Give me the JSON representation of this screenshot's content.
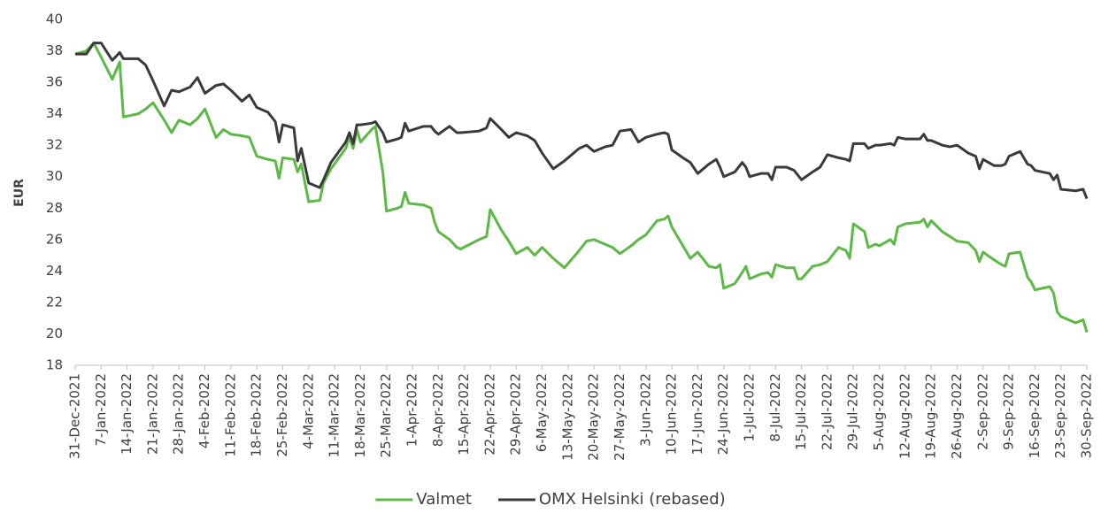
{
  "chart_data": {
    "type": "line",
    "y_label": "EUR",
    "ylim": [
      18,
      40
    ],
    "yticks": [
      18,
      20,
      22,
      24,
      26,
      28,
      30,
      32,
      34,
      36,
      38,
      40
    ],
    "xlim": [
      "31-Dec-2021",
      "30-Sep-2022"
    ],
    "xticks": [
      "31-Dec-2021",
      "7-Jan-2022",
      "14-Jan-2022",
      "21-Jan-2022",
      "28-Jan-2022",
      "4-Feb-2022",
      "11-Feb-2022",
      "18-Feb-2022",
      "25-Feb-2022",
      "4-Mar-2022",
      "11-Mar-2022",
      "18-Mar-2022",
      "25-Mar-2022",
      "1-Apr-2022",
      "8-Apr-2022",
      "15-Apr-2022",
      "22-Apr-2022",
      "29-Apr-2022",
      "6-May-2022",
      "13-May-2022",
      "20-May-2022",
      "27-May-2022",
      "3-Jun-2022",
      "10-Jun-2022",
      "17-Jun-2022",
      "24-Jun-2022",
      "1-Jul-2022",
      "8-Jul-2022",
      "15-Jul-2022",
      "22-Jul-2022",
      "29-Jul-2022",
      "5-Aug-2022",
      "12-Aug-2022",
      "19-Aug-2022",
      "26-Aug-2022",
      "2-Sep-2022",
      "9-Sep-2022",
      "16-Sep-2022",
      "23-Sep-2022",
      "30-Sep-2022"
    ],
    "legend": "bottom",
    "grid": false,
    "x": [
      "31-Dec-2021",
      "3-Jan-2022",
      "5-Jan-2022",
      "7-Jan-2022",
      "10-Jan-2022",
      "12-Jan-2022",
      "13-Jan-2022",
      "17-Jan-2022",
      "19-Jan-2022",
      "21-Jan-2022",
      "24-Jan-2022",
      "26-Jan-2022",
      "28-Jan-2022",
      "31-Jan-2022",
      "2-Feb-2022",
      "4-Feb-2022",
      "7-Feb-2022",
      "9-Feb-2022",
      "11-Feb-2022",
      "14-Feb-2022",
      "16-Feb-2022",
      "18-Feb-2022",
      "21-Feb-2022",
      "23-Feb-2022",
      "24-Feb-2022",
      "25-Feb-2022",
      "28-Feb-2022",
      "1-Mar-2022",
      "2-Mar-2022",
      "4-Mar-2022",
      "7-Mar-2022",
      "8-Mar-2022",
      "10-Mar-2022",
      "14-Mar-2022",
      "15-Mar-2022",
      "16-Mar-2022",
      "17-Mar-2022",
      "18-Mar-2022",
      "21-Mar-2022",
      "22-Mar-2022",
      "24-Mar-2022",
      "25-Mar-2022",
      "28-Mar-2022",
      "29-Mar-2022",
      "30-Mar-2022",
      "31-Mar-2022",
      "4-Apr-2022",
      "6-Apr-2022",
      "7-Apr-2022",
      "8-Apr-2022",
      "11-Apr-2022",
      "13-Apr-2022",
      "14-Apr-2022",
      "19-Apr-2022",
      "21-Apr-2022",
      "22-Apr-2022",
      "25-Apr-2022",
      "27-Apr-2022",
      "29-Apr-2022",
      "2-May-2022",
      "4-May-2022",
      "6-May-2022",
      "9-May-2022",
      "12-May-2022",
      "16-May-2022",
      "18-May-2022",
      "20-May-2022",
      "23-May-2022",
      "25-May-2022",
      "27-May-2022",
      "30-May-2022",
      "1-Jun-2022",
      "3-Jun-2022",
      "6-Jun-2022",
      "8-Jun-2022",
      "9-Jun-2022",
      "10-Jun-2022",
      "13-Jun-2022",
      "15-Jun-2022",
      "17-Jun-2022",
      "20-Jun-2022",
      "22-Jun-2022",
      "23-Jun-2022",
      "24-Jun-2022",
      "27-Jun-2022",
      "29-Jun-2022",
      "30-Jun-2022",
      "1-Jul-2022",
      "4-Jul-2022",
      "6-Jul-2022",
      "7-Jul-2022",
      "8-Jul-2022",
      "11-Jul-2022",
      "13-Jul-2022",
      "14-Jul-2022",
      "15-Jul-2022",
      "18-Jul-2022",
      "20-Jul-2022",
      "22-Jul-2022",
      "25-Jul-2022",
      "27-Jul-2022",
      "28-Jul-2022",
      "29-Jul-2022",
      "1-Aug-2022",
      "2-Aug-2022",
      "4-Aug-2022",
      "5-Aug-2022",
      "8-Aug-2022",
      "9-Aug-2022",
      "10-Aug-2022",
      "12-Aug-2022",
      "16-Aug-2022",
      "17-Aug-2022",
      "18-Aug-2022",
      "19-Aug-2022",
      "22-Aug-2022",
      "24-Aug-2022",
      "26-Aug-2022",
      "29-Aug-2022",
      "31-Aug-2022",
      "1-Sep-2022",
      "2-Sep-2022",
      "5-Sep-2022",
      "7-Sep-2022",
      "8-Sep-2022",
      "9-Sep-2022",
      "12-Sep-2022",
      "14-Sep-2022",
      "15-Sep-2022",
      "16-Sep-2022",
      "20-Sep-2022",
      "21-Sep-2022",
      "22-Sep-2022",
      "23-Sep-2022",
      "27-Sep-2022",
      "29-Sep-2022",
      "30-Sep-2022"
    ],
    "series": [
      {
        "name": "Valmet",
        "color": "#5cb946",
        "values": [
          37.8,
          38.0,
          38.5,
          37.6,
          36.2,
          37.3,
          33.8,
          34.0,
          34.3,
          34.7,
          33.6,
          32.8,
          33.6,
          33.3,
          33.7,
          34.3,
          32.5,
          33.0,
          32.7,
          32.6,
          32.5,
          31.3,
          31.1,
          31.0,
          29.9,
          31.2,
          31.1,
          30.3,
          30.8,
          28.4,
          28.5,
          29.6,
          30.5,
          31.8,
          32.5,
          31.8,
          33.0,
          32.2,
          33.0,
          33.2,
          30.3,
          27.8,
          28.0,
          28.1,
          29.0,
          28.3,
          28.2,
          28.0,
          27.1,
          26.5,
          26.0,
          25.5,
          25.4,
          26.0,
          26.2,
          27.9,
          26.6,
          25.9,
          25.1,
          25.5,
          25.0,
          25.5,
          24.8,
          24.2,
          25.3,
          25.9,
          26.0,
          25.7,
          25.5,
          25.1,
          25.6,
          26.0,
          26.3,
          27.2,
          27.3,
          27.5,
          26.8,
          25.6,
          24.8,
          25.2,
          24.3,
          24.2,
          24.4,
          22.9,
          23.2,
          23.9,
          24.3,
          23.5,
          23.8,
          23.9,
          23.6,
          24.4,
          24.2,
          24.2,
          23.5,
          23.5,
          24.3,
          24.4,
          24.6,
          25.5,
          25.3,
          24.8,
          27.0,
          26.5,
          25.5,
          25.7,
          25.6,
          26.0,
          25.7,
          26.8,
          27.0,
          27.1,
          27.3,
          26.8,
          27.2,
          26.5,
          26.2,
          25.9,
          25.8,
          25.3,
          24.6,
          25.2,
          24.7,
          24.4,
          24.3,
          25.1,
          25.2,
          23.6,
          23.3,
          22.8,
          23.0,
          22.6,
          21.4,
          21.1,
          20.7,
          20.9,
          20.1
        ]
      },
      {
        "name": "OMX Helsinki (rebased)",
        "color": "#3a3a3c",
        "values": [
          37.8,
          37.8,
          38.5,
          38.5,
          37.4,
          37.9,
          37.5,
          37.5,
          37.1,
          36.1,
          34.5,
          35.5,
          35.4,
          35.7,
          36.3,
          35.3,
          35.8,
          35.9,
          35.5,
          34.8,
          35.2,
          34.4,
          34.1,
          33.5,
          32.2,
          33.3,
          33.1,
          31.0,
          31.8,
          29.6,
          29.3,
          29.8,
          30.9,
          32.2,
          32.8,
          32.1,
          33.3,
          33.3,
          33.4,
          33.5,
          32.8,
          32.2,
          32.4,
          32.5,
          33.4,
          32.9,
          33.2,
          33.2,
          32.9,
          32.7,
          33.2,
          32.8,
          32.8,
          32.9,
          33.1,
          33.7,
          33.0,
          32.5,
          32.8,
          32.6,
          32.3,
          31.5,
          30.5,
          31.0,
          31.8,
          32.0,
          31.6,
          31.9,
          32.0,
          32.9,
          33.0,
          32.2,
          32.5,
          32.7,
          32.8,
          32.7,
          31.7,
          31.2,
          30.9,
          30.2,
          30.8,
          31.1,
          30.6,
          30.0,
          30.3,
          30.9,
          30.6,
          30.0,
          30.2,
          30.2,
          29.8,
          30.6,
          30.6,
          30.4,
          30.1,
          29.8,
          30.3,
          30.6,
          31.4,
          31.2,
          31.1,
          31.0,
          32.1,
          32.1,
          31.8,
          32.0,
          32.0,
          32.1,
          32.0,
          32.5,
          32.4,
          32.4,
          32.7,
          32.3,
          32.3,
          32.0,
          31.9,
          32.0,
          31.5,
          31.3,
          30.5,
          31.1,
          30.7,
          30.7,
          30.8,
          31.3,
          31.6,
          30.8,
          30.7,
          30.4,
          30.2,
          29.8,
          30.1,
          29.2,
          29.1,
          29.2,
          28.6
        ]
      }
    ]
  }
}
